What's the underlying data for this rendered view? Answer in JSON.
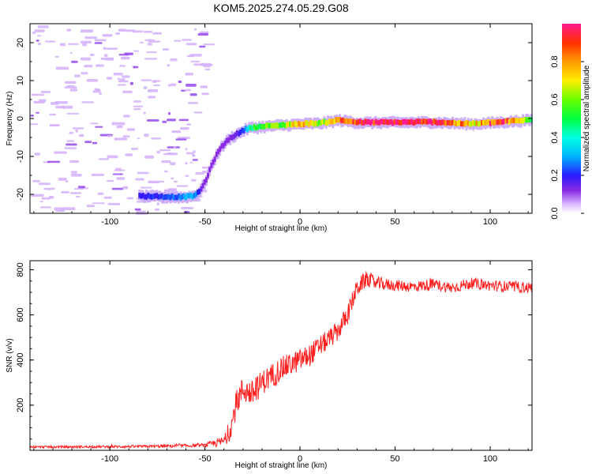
{
  "title": "KOM5.2025.274.05.29.G08",
  "chart_data": [
    {
      "type": "heatmap",
      "xlabel": "Height of straight line (km)",
      "ylabel": "Frequency (Hz)",
      "xlim": [
        -142,
        122
      ],
      "ylim": [
        -25,
        25
      ],
      "xticks": [
        -100,
        -50,
        0,
        50,
        100
      ],
      "xtick_labels": [
        "-100",
        "-50",
        "0",
        "50",
        "100"
      ],
      "yticks": [
        -20,
        -10,
        0,
        10,
        20
      ],
      "ytick_labels": [
        "-20",
        "-10",
        "0",
        "10",
        "20"
      ],
      "ridge": {
        "description": "peak frequency of dominant spectral component",
        "x": [
          -85,
          -70,
          -62,
          -57,
          -54,
          -52,
          -50,
          -48,
          -46,
          -44,
          -42,
          -40,
          -38,
          -36,
          -33,
          -30,
          -27,
          -20,
          -10,
          0,
          10,
          20,
          30,
          50,
          70,
          90,
          105,
          122
        ],
        "y": [
          -20.3,
          -20.5,
          -20.6,
          -20.3,
          -19.5,
          -18,
          -16,
          -13.5,
          -11,
          -9,
          -7.5,
          -6.3,
          -5.3,
          -4.6,
          -3.8,
          -2.9,
          -2.3,
          -2.0,
          -1.6,
          -1.3,
          -1.1,
          -0.3,
          -0.9,
          -0.9,
          -0.8,
          -1.3,
          -0.8,
          -0.2
        ],
        "amplitude": [
          0.2,
          0.22,
          0.28,
          0.3,
          0.22,
          0.12,
          0.1,
          0.1,
          0.1,
          0.1,
          0.1,
          0.1,
          0.12,
          0.12,
          0.15,
          0.25,
          0.45,
          0.6,
          0.55,
          0.8,
          0.6,
          0.85,
          0.95,
          0.98,
          0.98,
          0.7,
          0.95,
          0.5
        ]
      },
      "noise_region": {
        "x_range": [
          -142,
          -50
        ],
        "y_range": [
          -25,
          25
        ],
        "amplitude_max": 0.05
      }
    },
    {
      "type": "colorbar",
      "label": "Normalized spectral amplitude",
      "range": [
        0,
        1
      ],
      "ticks": [
        0.0,
        0.2,
        0.4,
        0.6,
        0.8
      ],
      "tick_labels": [
        "0.0",
        "0.2",
        "0.4",
        "0.6",
        "0.8"
      ],
      "colormap": "rainbow (white-lavender-violet-blue-cyan-green-yellow-orange-red-magenta)"
    },
    {
      "type": "line",
      "color": "#ff2020",
      "xlabel": "Height of straight line (km)",
      "ylabel": "SNR (v/v)",
      "xlim": [
        -142,
        122
      ],
      "ylim": [
        0,
        840
      ],
      "xticks": [
        -100,
        -50,
        0,
        50,
        100
      ],
      "xtick_labels": [
        "-100",
        "-50",
        "0",
        "50",
        "100"
      ],
      "yticks": [
        200,
        400,
        600,
        800
      ],
      "ytick_labels": [
        "200",
        "400",
        "600",
        "800"
      ],
      "trend": {
        "x": [
          -142,
          -120,
          -80,
          -50,
          -40,
          -37,
          -33,
          -30,
          -25,
          -20,
          -15,
          -10,
          -5,
          0,
          5,
          10,
          15,
          20,
          25,
          30,
          35,
          40,
          50,
          60,
          70,
          80,
          90,
          100,
          110,
          122
        ],
        "y": [
          15,
          15,
          17,
          22,
          40,
          80,
          220,
          270,
          250,
          300,
          330,
          360,
          380,
          400,
          420,
          460,
          490,
          530,
          600,
          720,
          760,
          740,
          730,
          725,
          735,
          720,
          740,
          730,
          725,
          720
        ],
        "noise": [
          5,
          5,
          6,
          8,
          25,
          40,
          60,
          60,
          60,
          55,
          55,
          55,
          50,
          50,
          50,
          45,
          45,
          45,
          45,
          40,
          35,
          30,
          25,
          25,
          25,
          25,
          25,
          25,
          25,
          25
        ]
      }
    }
  ]
}
